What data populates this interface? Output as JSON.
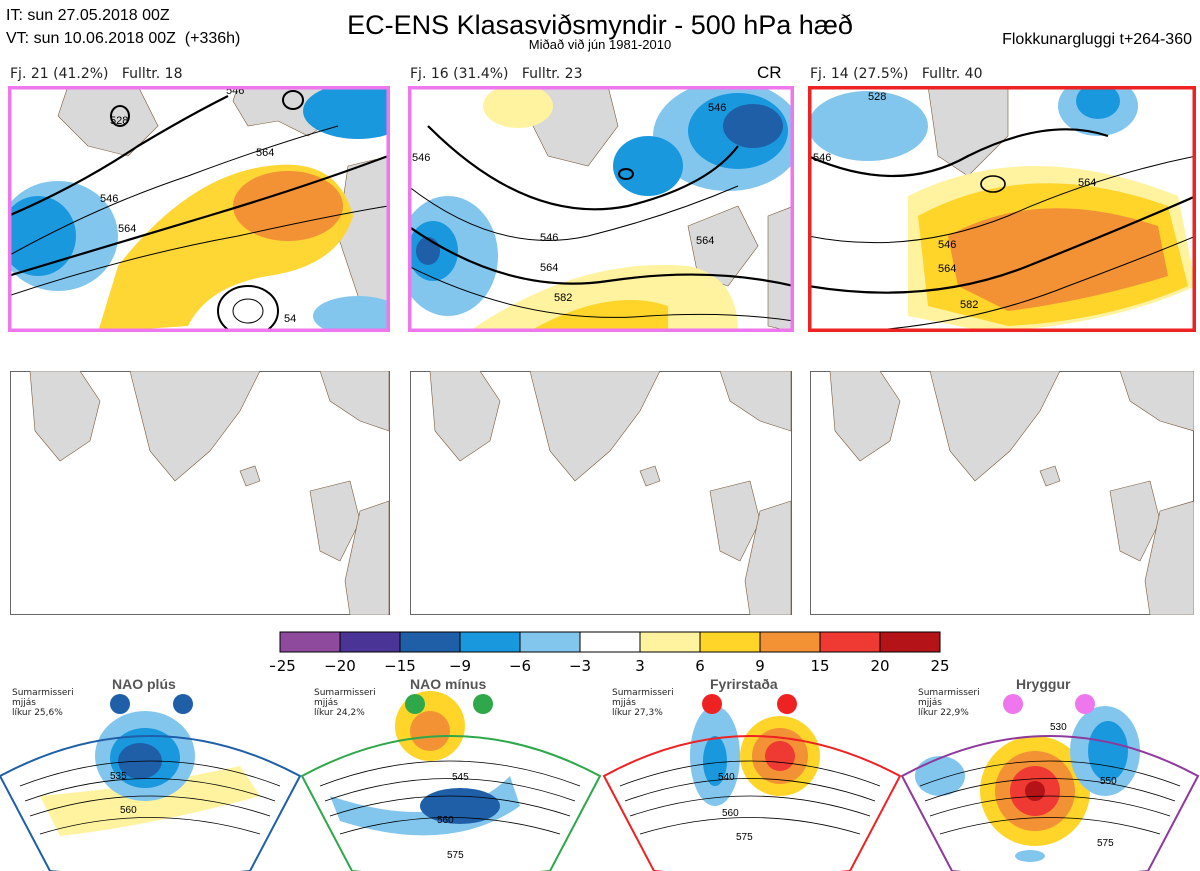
{
  "header": {
    "it_line": "IT: sun 27.05.2018 00Z",
    "vt_line": "VT: sun 10.06.2018 00Z  (+336h)",
    "title": "EC-ENS Klasasviðsmyndir - 500 hPa hæð",
    "subtitle": "Miðað við jún 1981-2010",
    "window": "Flokkunargluggi t+264-360"
  },
  "clusters": [
    {
      "label": "Fj. 21 (41.2%)",
      "member": "Fulltr. 18",
      "border_color": "#ee77ee",
      "tag": "",
      "contours": [
        "528",
        "546",
        "564",
        "546",
        "564",
        "54"
      ]
    },
    {
      "label": "Fj. 16 (31.4%)",
      "member": "Fulltr. 23",
      "border_color": "#ee77ee",
      "tag": "CR",
      "contours": [
        "546",
        "546",
        "564",
        "564",
        "582",
        "546"
      ]
    },
    {
      "label": "Fj. 14 (27.5%)",
      "member": "Fulltr. 40",
      "border_color": "#ee2222",
      "tag": "",
      "contours": [
        "528",
        "546",
        "546",
        "564",
        "564",
        "582"
      ]
    }
  ],
  "colorbar": {
    "ticks": [
      "−25",
      "−20",
      "−15",
      "−9",
      "−6",
      "−3",
      "3",
      "6",
      "9",
      "15",
      "20",
      "25"
    ],
    "colors": [
      "#8e4a9c",
      "#4a3596",
      "#1f5fa8",
      "#1a98de",
      "#82c6ee",
      "#ffffff",
      "#fff3a0",
      "#ffd52a",
      "#f39135",
      "#ee3a32",
      "#b41318"
    ]
  },
  "regimes": [
    {
      "name": "NAO plús",
      "meta": [
        "Sumarmisseri",
        "mjjás",
        "líkur 25,6%"
      ],
      "color": "#1f5fa8",
      "contours": [
        "535",
        "560"
      ]
    },
    {
      "name": "NAO mínus",
      "meta": [
        "Sumarmisseri",
        "mjjás",
        "líkur 24,2%"
      ],
      "color": "#2ea84a",
      "contours": [
        "545",
        "560",
        "575"
      ]
    },
    {
      "name": "Fyrirstaða",
      "meta": [
        "Sumarmisseri",
        "mjjás",
        "líkur 27,3%"
      ],
      "color": "#ee2222",
      "contours": [
        "540",
        "560",
        "575"
      ]
    },
    {
      "name": "Hryggur",
      "meta": [
        "Sumarmisseri",
        "mjjás",
        "líkur 22,9%"
      ],
      "color": "#ee77ee",
      "contours": [
        "530",
        "550",
        "575"
      ]
    }
  ]
}
